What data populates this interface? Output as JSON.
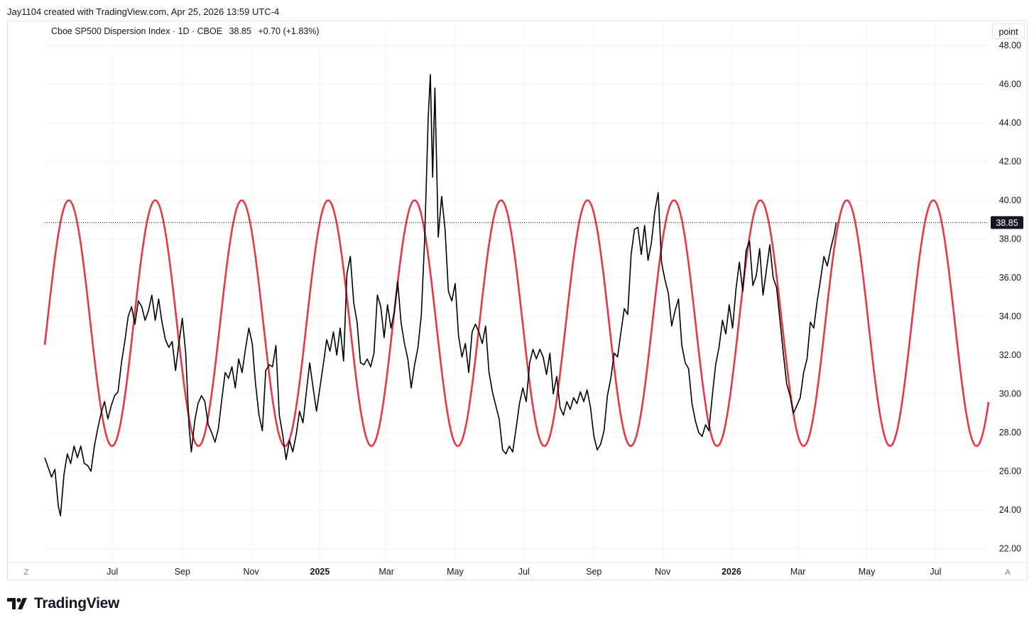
{
  "header": {
    "credit": "Jay1104 created with TradingView.com, Apr 25, 2026 13:59 UTC-4"
  },
  "legend": {
    "symbol": "Cboe SP500 Dispersion Index · 1D · CBOE",
    "price": "38.85",
    "change": "+0.70 (+1.83%)"
  },
  "toolbar": {
    "unit_label": "point"
  },
  "corner": {
    "left": "Z",
    "right": "A"
  },
  "footer": {
    "brand": "TradingView"
  },
  "colors": {
    "series": "#000000",
    "cycle": "#e63946",
    "grid": "#f0f3fa",
    "price_line": "#131722"
  },
  "chart_data": {
    "type": "line",
    "title": "Cboe SP500 Dispersion Index",
    "ylim": [
      21.0,
      48.0
    ],
    "y_ticks": [
      "48.00",
      "46.00",
      "44.00",
      "42.00",
      "40.00",
      "38.00",
      "36.00",
      "34.00",
      "32.00",
      "30.00",
      "28.00",
      "26.00",
      "24.00",
      "22.00"
    ],
    "x_ticks": [
      {
        "label": "Jul",
        "date": "2024-07-01",
        "bold": false
      },
      {
        "label": "Sep",
        "date": "2024-09-01",
        "bold": false
      },
      {
        "label": "Nov",
        "date": "2024-11-01",
        "bold": false
      },
      {
        "label": "2025",
        "date": "2025-01-01",
        "bold": true
      },
      {
        "label": "Mar",
        "date": "2025-03-01",
        "bold": false
      },
      {
        "label": "May",
        "date": "2025-05-01",
        "bold": false
      },
      {
        "label": "Jul",
        "date": "2025-07-01",
        "bold": false
      },
      {
        "label": "Sep",
        "date": "2025-09-01",
        "bold": false
      },
      {
        "label": "Nov",
        "date": "2025-11-01",
        "bold": false
      },
      {
        "label": "2026",
        "date": "2026-01-01",
        "bold": true
      },
      {
        "label": "Mar",
        "date": "2026-03-01",
        "bold": false
      },
      {
        "label": "May",
        "date": "2026-05-01",
        "bold": false
      },
      {
        "label": "Jul",
        "date": "2026-07-01",
        "bold": false
      }
    ],
    "x_range": [
      "2024-05-02",
      "2026-08-17"
    ],
    "last_value": 38.85,
    "series": [
      {
        "name": "Cboe SP500 Dispersion Index",
        "color": "#000000",
        "points": [
          [
            "2024-05-02",
            26.7
          ],
          [
            "2024-05-05",
            26.2
          ],
          [
            "2024-05-08",
            25.7
          ],
          [
            "2024-05-11",
            26.1
          ],
          [
            "2024-05-14",
            24.2
          ],
          [
            "2024-05-16",
            23.7
          ],
          [
            "2024-05-19",
            25.8
          ],
          [
            "2024-05-22",
            26.9
          ],
          [
            "2024-05-25",
            26.4
          ],
          [
            "2024-05-28",
            27.3
          ],
          [
            "2024-05-31",
            26.7
          ],
          [
            "2024-06-03",
            27.3
          ],
          [
            "2024-06-06",
            26.4
          ],
          [
            "2024-06-09",
            26.3
          ],
          [
            "2024-06-12",
            26.0
          ],
          [
            "2024-06-15",
            27.3
          ],
          [
            "2024-06-18",
            28.2
          ],
          [
            "2024-06-21",
            29.0
          ],
          [
            "2024-06-24",
            29.6
          ],
          [
            "2024-06-27",
            28.7
          ],
          [
            "2024-06-30",
            29.4
          ],
          [
            "2024-07-03",
            29.9
          ],
          [
            "2024-07-06",
            30.1
          ],
          [
            "2024-07-09",
            31.6
          ],
          [
            "2024-07-12",
            32.7
          ],
          [
            "2024-07-15",
            34.0
          ],
          [
            "2024-07-18",
            34.5
          ],
          [
            "2024-07-21",
            33.6
          ],
          [
            "2024-07-24",
            34.8
          ],
          [
            "2024-07-27",
            34.5
          ],
          [
            "2024-07-30",
            33.8
          ],
          [
            "2024-08-02",
            34.3
          ],
          [
            "2024-08-05",
            35.1
          ],
          [
            "2024-08-08",
            33.8
          ],
          [
            "2024-08-11",
            34.9
          ],
          [
            "2024-08-14",
            33.7
          ],
          [
            "2024-08-17",
            32.8
          ],
          [
            "2024-08-20",
            32.4
          ],
          [
            "2024-08-23",
            32.7
          ],
          [
            "2024-08-26",
            31.2
          ],
          [
            "2024-08-29",
            32.6
          ],
          [
            "2024-09-01",
            33.9
          ],
          [
            "2024-09-04",
            32.1
          ],
          [
            "2024-09-07",
            28.3
          ],
          [
            "2024-09-09",
            27.0
          ],
          [
            "2024-09-12",
            28.6
          ],
          [
            "2024-09-15",
            29.5
          ],
          [
            "2024-09-18",
            29.9
          ],
          [
            "2024-09-21",
            29.6
          ],
          [
            "2024-09-24",
            28.4
          ],
          [
            "2024-09-27",
            28.0
          ],
          [
            "2024-09-30",
            27.5
          ],
          [
            "2024-10-03",
            28.2
          ],
          [
            "2024-10-06",
            29.7
          ],
          [
            "2024-10-09",
            31.1
          ],
          [
            "2024-10-12",
            30.8
          ],
          [
            "2024-10-15",
            31.4
          ],
          [
            "2024-10-18",
            30.3
          ],
          [
            "2024-10-21",
            31.8
          ],
          [
            "2024-10-24",
            31.1
          ],
          [
            "2024-10-27",
            32.3
          ],
          [
            "2024-10-30",
            33.4
          ],
          [
            "2024-11-02",
            32.6
          ],
          [
            "2024-11-05",
            30.5
          ],
          [
            "2024-11-08",
            28.9
          ],
          [
            "2024-11-11",
            28.1
          ],
          [
            "2024-11-14",
            31.2
          ],
          [
            "2024-11-17",
            31.5
          ],
          [
            "2024-11-20",
            31.4
          ],
          [
            "2024-11-23",
            32.5
          ],
          [
            "2024-11-26",
            28.9
          ],
          [
            "2024-11-29",
            27.9
          ],
          [
            "2024-12-02",
            26.6
          ],
          [
            "2024-12-05",
            27.6
          ],
          [
            "2024-12-08",
            27.0
          ],
          [
            "2024-12-11",
            27.9
          ],
          [
            "2024-12-14",
            29.1
          ],
          [
            "2024-12-17",
            28.5
          ],
          [
            "2024-12-20",
            30.1
          ],
          [
            "2024-12-23",
            31.6
          ],
          [
            "2024-12-26",
            30.3
          ],
          [
            "2024-12-29",
            29.1
          ],
          [
            "2025-01-01",
            30.3
          ],
          [
            "2025-01-04",
            31.5
          ],
          [
            "2025-01-07",
            32.8
          ],
          [
            "2025-01-10",
            32.2
          ],
          [
            "2025-01-13",
            33.2
          ],
          [
            "2025-01-16",
            32.0
          ],
          [
            "2025-01-19",
            33.4
          ],
          [
            "2025-01-22",
            31.7
          ],
          [
            "2025-01-25",
            36.2
          ],
          [
            "2025-01-28",
            37.1
          ],
          [
            "2025-01-31",
            34.7
          ],
          [
            "2025-02-03",
            33.7
          ],
          [
            "2025-02-06",
            31.6
          ],
          [
            "2025-02-09",
            31.5
          ],
          [
            "2025-02-12",
            31.8
          ],
          [
            "2025-02-15",
            31.4
          ],
          [
            "2025-02-18",
            32.1
          ],
          [
            "2025-02-21",
            35.1
          ],
          [
            "2025-02-24",
            34.5
          ],
          [
            "2025-02-27",
            32.9
          ],
          [
            "2025-03-02",
            34.6
          ],
          [
            "2025-03-05",
            33.4
          ],
          [
            "2025-03-08",
            34.2
          ],
          [
            "2025-03-11",
            35.8
          ],
          [
            "2025-03-14",
            33.7
          ],
          [
            "2025-03-17",
            32.6
          ],
          [
            "2025-03-20",
            31.8
          ],
          [
            "2025-03-23",
            30.3
          ],
          [
            "2025-03-26",
            31.5
          ],
          [
            "2025-03-29",
            32.4
          ],
          [
            "2025-04-01",
            34.1
          ],
          [
            "2025-04-04",
            38.1
          ],
          [
            "2025-04-07",
            44.2
          ],
          [
            "2025-04-09",
            46.5
          ],
          [
            "2025-04-11",
            41.2
          ],
          [
            "2025-04-13",
            45.8
          ],
          [
            "2025-04-16",
            38.1
          ],
          [
            "2025-04-19",
            40.2
          ],
          [
            "2025-04-22",
            38.5
          ],
          [
            "2025-04-25",
            35.3
          ],
          [
            "2025-04-28",
            34.8
          ],
          [
            "2025-05-01",
            35.7
          ],
          [
            "2025-05-04",
            33.0
          ],
          [
            "2025-05-07",
            31.9
          ],
          [
            "2025-05-10",
            32.6
          ],
          [
            "2025-05-13",
            31.1
          ],
          [
            "2025-05-16",
            33.2
          ],
          [
            "2025-05-19",
            33.6
          ],
          [
            "2025-05-22",
            33.2
          ],
          [
            "2025-05-25",
            32.6
          ],
          [
            "2025-05-28",
            33.5
          ],
          [
            "2025-05-31",
            31.1
          ],
          [
            "2025-06-03",
            30.1
          ],
          [
            "2025-06-06",
            29.4
          ],
          [
            "2025-06-09",
            28.7
          ],
          [
            "2025-06-12",
            27.1
          ],
          [
            "2025-06-15",
            26.9
          ],
          [
            "2025-06-18",
            27.3
          ],
          [
            "2025-06-21",
            27.0
          ],
          [
            "2025-06-24",
            28.2
          ],
          [
            "2025-06-27",
            29.5
          ],
          [
            "2025-06-30",
            30.3
          ],
          [
            "2025-07-03",
            29.6
          ],
          [
            "2025-07-06",
            31.6
          ],
          [
            "2025-07-09",
            32.3
          ],
          [
            "2025-07-12",
            31.8
          ],
          [
            "2025-07-15",
            32.3
          ],
          [
            "2025-07-18",
            31.9
          ],
          [
            "2025-07-21",
            31.0
          ],
          [
            "2025-07-24",
            32.1
          ],
          [
            "2025-07-27",
            30.0
          ],
          [
            "2025-07-30",
            30.9
          ],
          [
            "2025-08-02",
            29.3
          ],
          [
            "2025-08-05",
            28.9
          ],
          [
            "2025-08-08",
            29.6
          ],
          [
            "2025-08-11",
            29.2
          ],
          [
            "2025-08-14",
            29.8
          ],
          [
            "2025-08-17",
            29.5
          ],
          [
            "2025-08-20",
            30.1
          ],
          [
            "2025-08-23",
            29.6
          ],
          [
            "2025-08-26",
            30.2
          ],
          [
            "2025-08-29",
            29.3
          ],
          [
            "2025-09-01",
            27.8
          ],
          [
            "2025-09-04",
            27.1
          ],
          [
            "2025-09-07",
            27.4
          ],
          [
            "2025-09-10",
            28.1
          ],
          [
            "2025-09-13",
            29.9
          ],
          [
            "2025-09-16",
            30.8
          ],
          [
            "2025-09-19",
            32.1
          ],
          [
            "2025-09-22",
            31.9
          ],
          [
            "2025-09-25",
            33.2
          ],
          [
            "2025-09-28",
            34.4
          ],
          [
            "2025-10-01",
            34.1
          ],
          [
            "2025-10-04",
            37.2
          ],
          [
            "2025-10-07",
            38.5
          ],
          [
            "2025-10-10",
            38.6
          ],
          [
            "2025-10-13",
            37.2
          ],
          [
            "2025-10-16",
            38.7
          ],
          [
            "2025-10-19",
            36.9
          ],
          [
            "2025-10-22",
            37.8
          ],
          [
            "2025-10-25",
            39.4
          ],
          [
            "2025-10-28",
            40.4
          ],
          [
            "2025-10-31",
            36.8
          ],
          [
            "2025-11-03",
            35.9
          ],
          [
            "2025-11-06",
            35.2
          ],
          [
            "2025-11-09",
            33.5
          ],
          [
            "2025-11-12",
            34.3
          ],
          [
            "2025-11-15",
            34.9
          ],
          [
            "2025-11-18",
            32.5
          ],
          [
            "2025-11-21",
            31.6
          ],
          [
            "2025-11-24",
            31.3
          ],
          [
            "2025-11-27",
            29.5
          ],
          [
            "2025-11-30",
            28.6
          ],
          [
            "2025-12-03",
            28.0
          ],
          [
            "2025-12-06",
            27.8
          ],
          [
            "2025-12-09",
            28.4
          ],
          [
            "2025-12-12",
            28.1
          ],
          [
            "2025-12-15",
            29.9
          ],
          [
            "2025-12-18",
            31.5
          ],
          [
            "2025-12-21",
            32.4
          ],
          [
            "2025-12-24",
            33.8
          ],
          [
            "2025-12-27",
            33.1
          ],
          [
            "2025-12-30",
            34.6
          ],
          [
            "2026-01-02",
            33.4
          ],
          [
            "2026-01-05",
            35.4
          ],
          [
            "2026-01-08",
            36.8
          ],
          [
            "2026-01-11",
            35.3
          ],
          [
            "2026-01-14",
            37.4
          ],
          [
            "2026-01-17",
            37.9
          ],
          [
            "2026-01-20",
            35.6
          ],
          [
            "2026-01-23",
            36.1
          ],
          [
            "2026-01-26",
            37.5
          ],
          [
            "2026-01-29",
            35.1
          ],
          [
            "2026-02-01",
            36.4
          ],
          [
            "2026-02-04",
            37.7
          ],
          [
            "2026-02-07",
            36.0
          ],
          [
            "2026-02-10",
            35.5
          ],
          [
            "2026-02-13",
            33.8
          ],
          [
            "2026-02-16",
            32.1
          ],
          [
            "2026-02-19",
            30.5
          ],
          [
            "2026-02-22",
            29.9
          ],
          [
            "2026-02-25",
            29.0
          ],
          [
            "2026-02-28",
            29.4
          ],
          [
            "2026-03-03",
            29.8
          ],
          [
            "2026-03-06",
            31.1
          ],
          [
            "2026-03-09",
            31.8
          ],
          [
            "2026-03-12",
            33.7
          ],
          [
            "2026-03-15",
            33.4
          ],
          [
            "2026-03-18",
            34.8
          ],
          [
            "2026-03-21",
            35.9
          ],
          [
            "2026-03-24",
            37.1
          ],
          [
            "2026-03-27",
            36.6
          ],
          [
            "2026-03-30",
            37.5
          ],
          [
            "2026-04-02",
            38.2
          ],
          [
            "2026-04-04",
            38.85
          ]
        ]
      },
      {
        "name": "cycle",
        "color": "#e63946",
        "shape": "sine",
        "max": 40.0,
        "min": 27.3,
        "peak_dates": [
          "2024-08-08",
          "2024-10-24",
          "2025-01-09",
          "2025-03-27",
          "2025-06-12",
          "2025-08-27",
          "2025-11-12",
          "2026-01-27",
          "2026-04-14",
          "2026-06-29"
        ],
        "trough_dates": [
          "2024-06-15",
          "2024-09-16",
          "2024-12-01",
          "2025-02-17",
          "2025-05-05",
          "2025-07-20",
          "2025-10-05",
          "2025-12-20",
          "2026-03-08",
          "2026-05-22"
        ]
      }
    ]
  }
}
